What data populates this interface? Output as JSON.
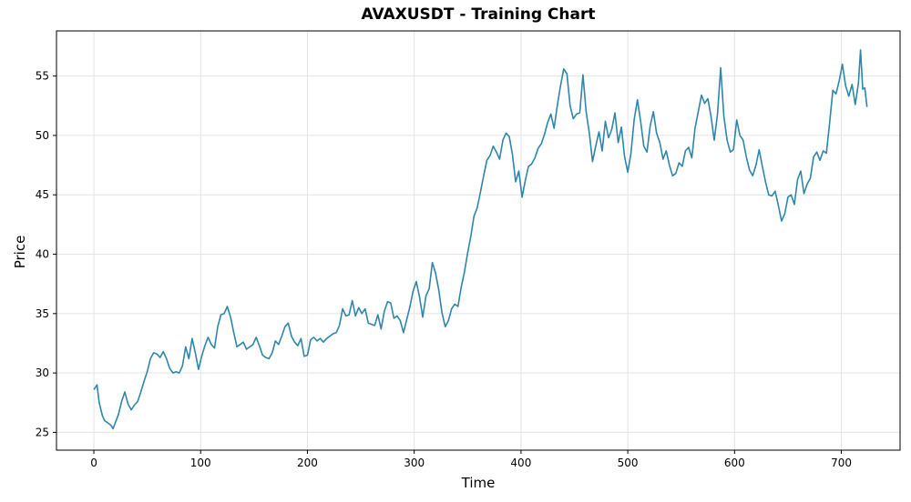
{
  "chart_data": {
    "type": "line",
    "title": "AVAXUSDT - Training Chart",
    "xlabel": "Time",
    "ylabel": "Price",
    "xlim": [
      -35,
      755
    ],
    "ylim": [
      23.5,
      58.8
    ],
    "x_ticks": [
      0,
      100,
      200,
      300,
      400,
      500,
      600,
      700
    ],
    "y_ticks": [
      25,
      30,
      35,
      40,
      45,
      50,
      55
    ],
    "grid": true,
    "line_color": "#2e86ab",
    "series": [
      {
        "points": [
          [
            0,
            28.6
          ],
          [
            3,
            29.0
          ],
          [
            5,
            27.5
          ],
          [
            8,
            26.4
          ],
          [
            10,
            26.0
          ],
          [
            13,
            25.8
          ],
          [
            16,
            25.6
          ],
          [
            18,
            25.3
          ],
          [
            20,
            25.8
          ],
          [
            23,
            26.5
          ],
          [
            26,
            27.6
          ],
          [
            29,
            28.4
          ],
          [
            32,
            27.4
          ],
          [
            35,
            26.9
          ],
          [
            38,
            27.3
          ],
          [
            41,
            27.6
          ],
          [
            44,
            28.4
          ],
          [
            47,
            29.3
          ],
          [
            50,
            30.1
          ],
          [
            53,
            31.2
          ],
          [
            56,
            31.7
          ],
          [
            59,
            31.6
          ],
          [
            62,
            31.3
          ],
          [
            65,
            31.8
          ],
          [
            68,
            31.2
          ],
          [
            71,
            30.4
          ],
          [
            74,
            30.0
          ],
          [
            77,
            30.1
          ],
          [
            80,
            30.0
          ],
          [
            83,
            30.6
          ],
          [
            86,
            32.2
          ],
          [
            89,
            31.2
          ],
          [
            92,
            32.9
          ],
          [
            95,
            31.7
          ],
          [
            98,
            30.3
          ],
          [
            101,
            31.4
          ],
          [
            104,
            32.3
          ],
          [
            107,
            33.0
          ],
          [
            110,
            32.4
          ],
          [
            113,
            32.1
          ],
          [
            116,
            33.9
          ],
          [
            119,
            34.9
          ],
          [
            122,
            35.0
          ],
          [
            125,
            35.6
          ],
          [
            128,
            34.7
          ],
          [
            131,
            33.4
          ],
          [
            134,
            32.2
          ],
          [
            137,
            32.4
          ],
          [
            140,
            32.6
          ],
          [
            143,
            32.0
          ],
          [
            146,
            32.2
          ],
          [
            149,
            32.4
          ],
          [
            152,
            33.0
          ],
          [
            155,
            32.3
          ],
          [
            158,
            31.5
          ],
          [
            161,
            31.3
          ],
          [
            164,
            31.2
          ],
          [
            167,
            31.7
          ],
          [
            170,
            32.7
          ],
          [
            173,
            32.4
          ],
          [
            176,
            33.1
          ],
          [
            179,
            33.9
          ],
          [
            182,
            34.2
          ],
          [
            185,
            33.1
          ],
          [
            188,
            32.6
          ],
          [
            191,
            32.3
          ],
          [
            194,
            32.9
          ],
          [
            197,
            31.4
          ],
          [
            200,
            31.5
          ],
          [
            203,
            32.8
          ],
          [
            206,
            33.0
          ],
          [
            209,
            32.7
          ],
          [
            212,
            32.9
          ],
          [
            215,
            32.6
          ],
          [
            218,
            32.9
          ],
          [
            221,
            33.1
          ],
          [
            224,
            33.3
          ],
          [
            227,
            33.4
          ],
          [
            230,
            34.0
          ],
          [
            233,
            35.4
          ],
          [
            236,
            34.8
          ],
          [
            239,
            34.9
          ],
          [
            242,
            36.1
          ],
          [
            245,
            34.8
          ],
          [
            248,
            35.5
          ],
          [
            251,
            35.0
          ],
          [
            254,
            35.4
          ],
          [
            257,
            34.2
          ],
          [
            260,
            34.1
          ],
          [
            263,
            34.0
          ],
          [
            266,
            34.9
          ],
          [
            269,
            33.7
          ],
          [
            272,
            35.2
          ],
          [
            275,
            36.0
          ],
          [
            278,
            35.9
          ],
          [
            281,
            34.6
          ],
          [
            284,
            34.8
          ],
          [
            287,
            34.4
          ],
          [
            290,
            33.4
          ],
          [
            293,
            34.5
          ],
          [
            296,
            35.6
          ],
          [
            299,
            36.9
          ],
          [
            302,
            37.7
          ],
          [
            305,
            36.4
          ],
          [
            308,
            34.7
          ],
          [
            311,
            36.5
          ],
          [
            314,
            37.1
          ],
          [
            317,
            39.3
          ],
          [
            320,
            38.4
          ],
          [
            323,
            37.0
          ],
          [
            326,
            35.1
          ],
          [
            329,
            33.9
          ],
          [
            332,
            34.4
          ],
          [
            335,
            35.4
          ],
          [
            338,
            35.8
          ],
          [
            341,
            35.6
          ],
          [
            344,
            37.2
          ],
          [
            347,
            38.5
          ],
          [
            350,
            40.1
          ],
          [
            353,
            41.5
          ],
          [
            356,
            43.2
          ],
          [
            359,
            43.9
          ],
          [
            362,
            45.2
          ],
          [
            365,
            46.6
          ],
          [
            368,
            47.9
          ],
          [
            371,
            48.3
          ],
          [
            374,
            49.1
          ],
          [
            377,
            48.6
          ],
          [
            380,
            48.0
          ],
          [
            383,
            49.6
          ],
          [
            386,
            50.2
          ],
          [
            389,
            49.9
          ],
          [
            392,
            48.4
          ],
          [
            395,
            46.1
          ],
          [
            398,
            47.0
          ],
          [
            401,
            44.8
          ],
          [
            404,
            46.2
          ],
          [
            407,
            47.4
          ],
          [
            410,
            47.6
          ],
          [
            413,
            48.1
          ],
          [
            416,
            48.9
          ],
          [
            419,
            49.3
          ],
          [
            422,
            50.1
          ],
          [
            425,
            51.1
          ],
          [
            428,
            51.8
          ],
          [
            431,
            50.6
          ],
          [
            434,
            52.5
          ],
          [
            437,
            54.2
          ],
          [
            440,
            55.6
          ],
          [
            443,
            55.2
          ],
          [
            446,
            52.5
          ],
          [
            449,
            51.4
          ],
          [
            452,
            51.8
          ],
          [
            455,
            51.9
          ],
          [
            458,
            55.1
          ],
          [
            461,
            52.0
          ],
          [
            464,
            50.2
          ],
          [
            467,
            47.8
          ],
          [
            470,
            49.1
          ],
          [
            473,
            50.3
          ],
          [
            476,
            48.7
          ],
          [
            479,
            51.2
          ],
          [
            482,
            49.8
          ],
          [
            485,
            50.5
          ],
          [
            488,
            51.9
          ],
          [
            491,
            49.4
          ],
          [
            494,
            50.7
          ],
          [
            497,
            48.2
          ],
          [
            500,
            46.9
          ],
          [
            503,
            48.5
          ],
          [
            506,
            51.3
          ],
          [
            509,
            53.0
          ],
          [
            512,
            51.2
          ],
          [
            515,
            49.1
          ],
          [
            518,
            48.6
          ],
          [
            521,
            50.8
          ],
          [
            524,
            52.0
          ],
          [
            527,
            50.2
          ],
          [
            530,
            49.4
          ],
          [
            533,
            48.0
          ],
          [
            536,
            48.7
          ],
          [
            539,
            47.5
          ],
          [
            542,
            46.6
          ],
          [
            545,
            46.8
          ],
          [
            548,
            47.7
          ],
          [
            551,
            47.4
          ],
          [
            554,
            48.7
          ],
          [
            557,
            49.0
          ],
          [
            560,
            48.1
          ],
          [
            563,
            50.6
          ],
          [
            566,
            52.0
          ],
          [
            569,
            53.4
          ],
          [
            572,
            52.7
          ],
          [
            575,
            53.1
          ],
          [
            578,
            51.6
          ],
          [
            581,
            49.6
          ],
          [
            584,
            51.8
          ],
          [
            587,
            55.7
          ],
          [
            590,
            51.6
          ],
          [
            593,
            49.6
          ],
          [
            596,
            48.6
          ],
          [
            599,
            48.8
          ],
          [
            602,
            51.3
          ],
          [
            605,
            50.0
          ],
          [
            608,
            49.6
          ],
          [
            611,
            48.2
          ],
          [
            614,
            47.1
          ],
          [
            617,
            46.6
          ],
          [
            620,
            47.5
          ],
          [
            623,
            48.8
          ],
          [
            626,
            47.4
          ],
          [
            629,
            46.1
          ],
          [
            632,
            45.0
          ],
          [
            635,
            44.9
          ],
          [
            638,
            45.3
          ],
          [
            641,
            44.1
          ],
          [
            644,
            42.8
          ],
          [
            647,
            43.4
          ],
          [
            650,
            44.8
          ],
          [
            653,
            45.0
          ],
          [
            656,
            44.2
          ],
          [
            659,
            46.3
          ],
          [
            662,
            47.0
          ],
          [
            665,
            45.1
          ],
          [
            668,
            45.9
          ],
          [
            671,
            46.4
          ],
          [
            674,
            48.2
          ],
          [
            677,
            48.6
          ],
          [
            680,
            47.9
          ],
          [
            683,
            48.7
          ],
          [
            686,
            48.5
          ],
          [
            689,
            51.0
          ],
          [
            692,
            53.8
          ],
          [
            695,
            53.5
          ],
          [
            698,
            54.6
          ],
          [
            701,
            56.0
          ],
          [
            704,
            54.2
          ],
          [
            707,
            53.3
          ],
          [
            710,
            54.3
          ],
          [
            713,
            52.6
          ],
          [
            716,
            54.4
          ],
          [
            718,
            57.2
          ],
          [
            720,
            53.9
          ],
          [
            722,
            54.0
          ],
          [
            724,
            52.4
          ]
        ]
      }
    ]
  }
}
